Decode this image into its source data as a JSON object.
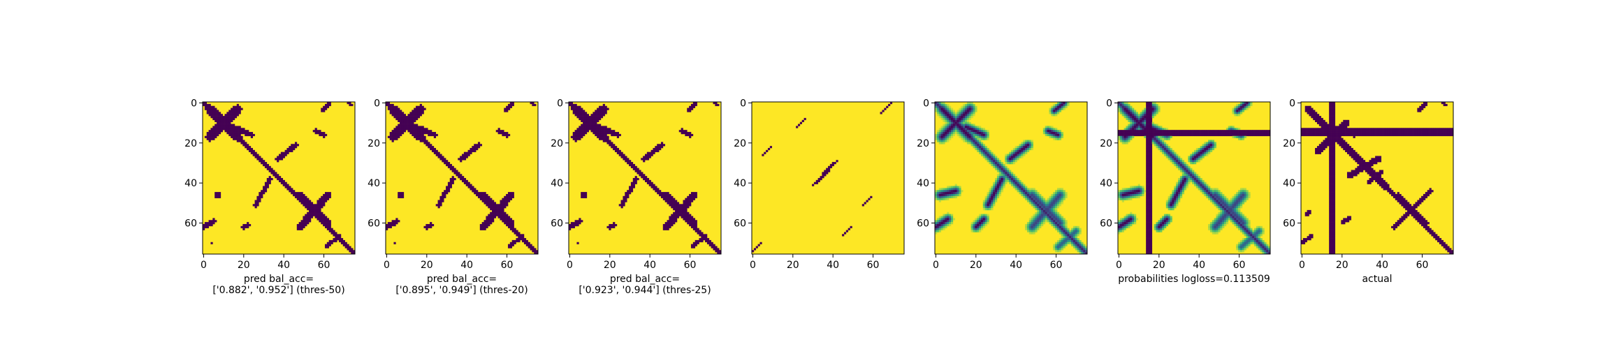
{
  "colors": {
    "low": "#440154",
    "mid": "#21918c",
    "high": "#fde725",
    "axis": "#000000",
    "background": "#ffffff"
  },
  "chart_data": [
    {
      "type": "heatmap",
      "cmap": "viridis",
      "size": 76,
      "xticks": [
        "0",
        "20",
        "40",
        "60"
      ],
      "yticks": [
        "0",
        "20",
        "40",
        "60"
      ],
      "caption": [
        "pred bal_acc=",
        "['0.882', '0.952'] (thres-50)"
      ],
      "pattern": "pred-thick"
    },
    {
      "type": "heatmap",
      "cmap": "viridis",
      "size": 76,
      "xticks": [
        "0",
        "20",
        "40",
        "60"
      ],
      "yticks": [
        "0",
        "20",
        "40",
        "60"
      ],
      "caption": [
        "pred bal_acc=",
        "['0.895', '0.949'] (thres-20)"
      ],
      "pattern": "pred-thick"
    },
    {
      "type": "heatmap",
      "cmap": "viridis",
      "size": 76,
      "xticks": [
        "0",
        "20",
        "40",
        "60"
      ],
      "yticks": [
        "0",
        "20",
        "40",
        "60"
      ],
      "caption": [
        "pred bal_acc=",
        "['0.923', '0.944'] (thres-25)"
      ],
      "pattern": "pred-thick"
    },
    {
      "type": "heatmap",
      "cmap": "viridis",
      "size": 76,
      "xticks": [
        "0",
        "20",
        "40",
        "60"
      ],
      "yticks": [
        "0",
        "20",
        "40",
        "60"
      ],
      "caption": [],
      "pattern": "sparse-diagonals"
    },
    {
      "type": "heatmap",
      "cmap": "viridis",
      "size": 76,
      "xticks": [
        "0",
        "20",
        "40",
        "60"
      ],
      "yticks": [
        "0",
        "20",
        "40",
        "60"
      ],
      "caption": [],
      "pattern": "continuous"
    },
    {
      "type": "heatmap",
      "cmap": "viridis",
      "size": 76,
      "xticks": [
        "0",
        "20",
        "40",
        "60"
      ],
      "yticks": [
        "0",
        "20",
        "40",
        "60"
      ],
      "caption": [
        "probabilities logloss=0.113509"
      ],
      "pattern": "pred-with-cross",
      "cross_index": 15
    },
    {
      "type": "heatmap",
      "cmap": "viridis",
      "size": 76,
      "xticks": [
        "0",
        "20",
        "40",
        "60"
      ],
      "yticks": [
        "0",
        "20",
        "40",
        "60"
      ],
      "caption": [
        "actual"
      ],
      "pattern": "actual",
      "cross_index": 15
    }
  ]
}
